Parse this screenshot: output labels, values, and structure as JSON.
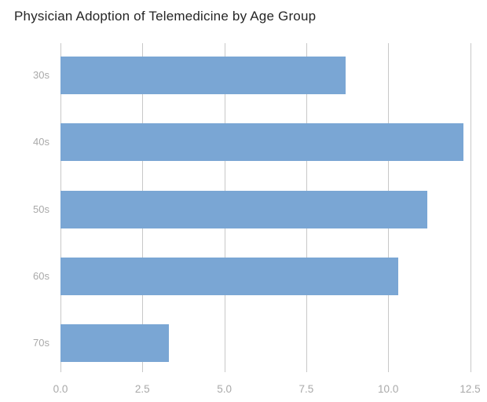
{
  "chart_data": {
    "type": "bar",
    "orientation": "horizontal",
    "title": "Physician Adoption of Telemedicine by Age Group",
    "categories": [
      "30s",
      "40s",
      "50s",
      "60s",
      "70s"
    ],
    "values": [
      8.7,
      12.3,
      11.2,
      10.3,
      3.3
    ],
    "xlabel": "",
    "ylabel": "",
    "xlim": [
      0,
      12.5
    ],
    "xticks": [
      0,
      2.5,
      5,
      7.5,
      10,
      12.5
    ],
    "xtick_labels": [
      "0.0",
      "2.5",
      "5.0",
      "7.5",
      "10.0",
      "12.5"
    ],
    "grid": true,
    "legend": false,
    "colors": {
      "bar": "#7aa6d4",
      "gridline": "#c8c8c8",
      "tick": "#c8c8c8",
      "axis_label": "#a9a9a9",
      "title": "#262626",
      "background": "#ffffff"
    }
  }
}
